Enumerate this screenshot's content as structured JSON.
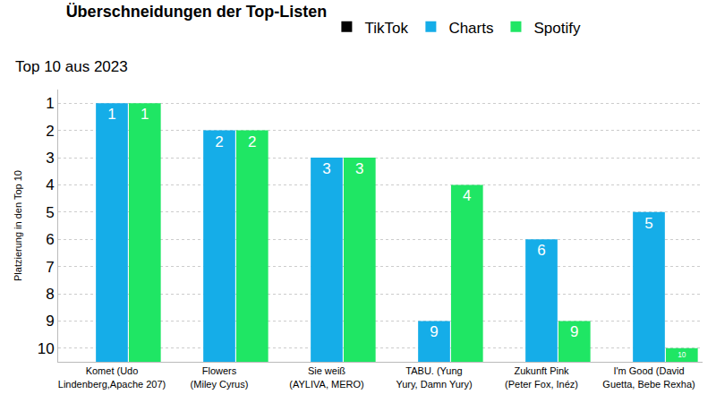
{
  "chart_data": {
    "type": "bar",
    "title": "Überschneidungen der Top-Listen",
    "subtitle": "Top 10 aus 2023",
    "y_label": "Platzierung in den Top 10",
    "categories": [
      "Komet (Udo\nLindenberg,Apache 207)",
      "Flowers\n(Miley Cyrus)",
      "Sie weiß\n(AYLIVA, MERO)",
      "TABU. (Yung\nYury, Damn Yury)",
      "Zukunft Pink\n(Peter Fox, Inéz)",
      "I'm Good (David\nGuetta, Bebe Rexha)"
    ],
    "series": [
      {
        "name": "TikTok",
        "color": "#000000",
        "values": [
          null,
          null,
          null,
          null,
          null,
          null
        ]
      },
      {
        "name": "Charts",
        "color": "#15ade8",
        "values": [
          1,
          2,
          3,
          9,
          6,
          5
        ]
      },
      {
        "name": "Spotify",
        "color": "#1fe664",
        "values": [
          1,
          2,
          3,
          4,
          9,
          10
        ]
      }
    ],
    "ylim": [
      10.5,
      0.5
    ],
    "yticks": [
      1,
      2,
      3,
      4,
      5,
      6,
      7,
      8,
      9,
      10
    ],
    "grid": true,
    "legend": "top",
    "data_labels": true
  }
}
